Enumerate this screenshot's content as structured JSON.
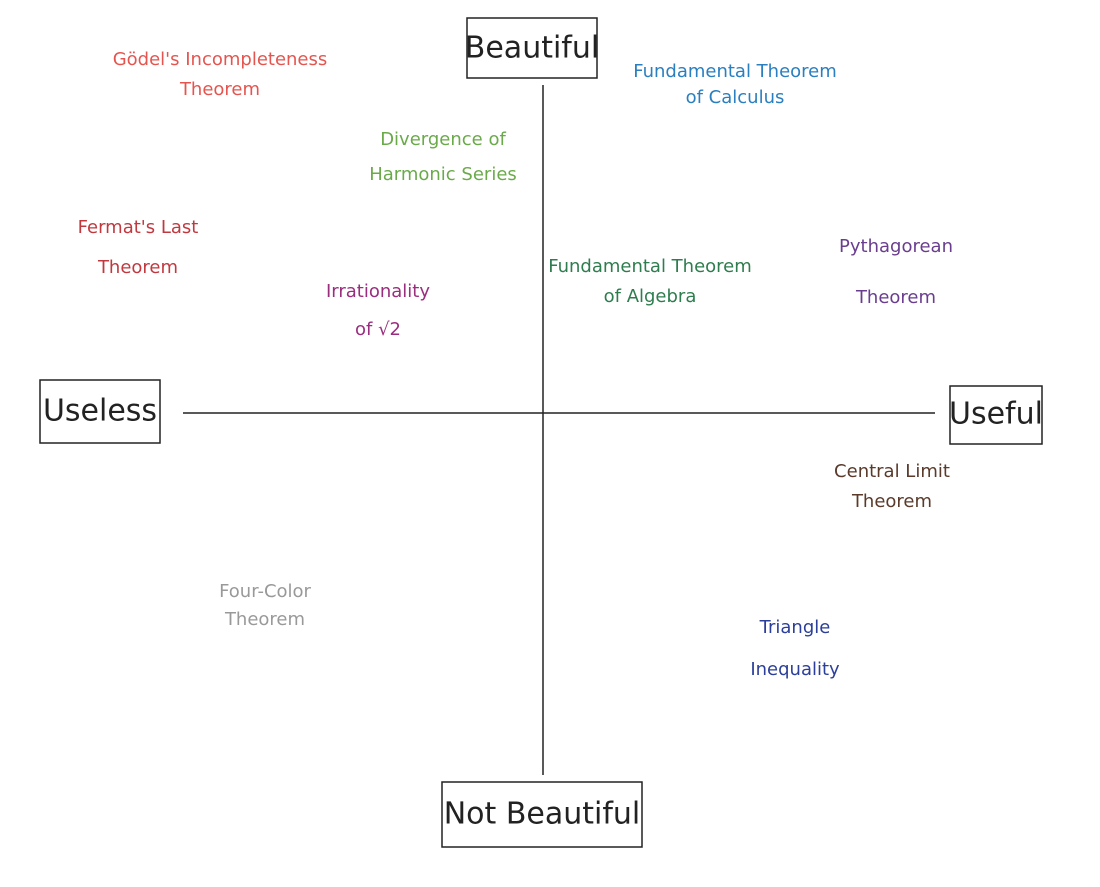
{
  "axes": {
    "top": "Beautiful",
    "bottom": "Not Beautiful",
    "left": "Useless",
    "right": "Useful"
  },
  "nodes": [
    {
      "lines": [
        "Gödel's Incompleteness",
        "Theorem"
      ],
      "color": "#e5554f"
    },
    {
      "lines": [
        "Fundamental Theorem",
        "of Calculus"
      ],
      "color": "#2a7fc0"
    },
    {
      "lines": [
        "Divergence of",
        "Harmonic Series"
      ],
      "color": "#6aaa4a"
    },
    {
      "lines": [
        "Fermat's Last",
        "Theorem"
      ],
      "color": "#c0393f"
    },
    {
      "lines": [
        "Fundamental Theorem",
        "of Algebra"
      ],
      "color": "#2e7d4f"
    },
    {
      "lines": [
        "Pythagorean",
        "Theorem"
      ],
      "color": "#6a3d8f"
    },
    {
      "lines": [
        "Irrationality",
        "of √2"
      ],
      "color": "#9b2d7f"
    },
    {
      "lines": [
        "Central Limit",
        "Theorem"
      ],
      "color": "#5a3a2a"
    },
    {
      "lines": [
        "Four-Color",
        "Theorem"
      ],
      "color": "#999999"
    },
    {
      "lines": [
        "Triangle",
        "Inequality"
      ],
      "color": "#2b3f9a"
    }
  ]
}
